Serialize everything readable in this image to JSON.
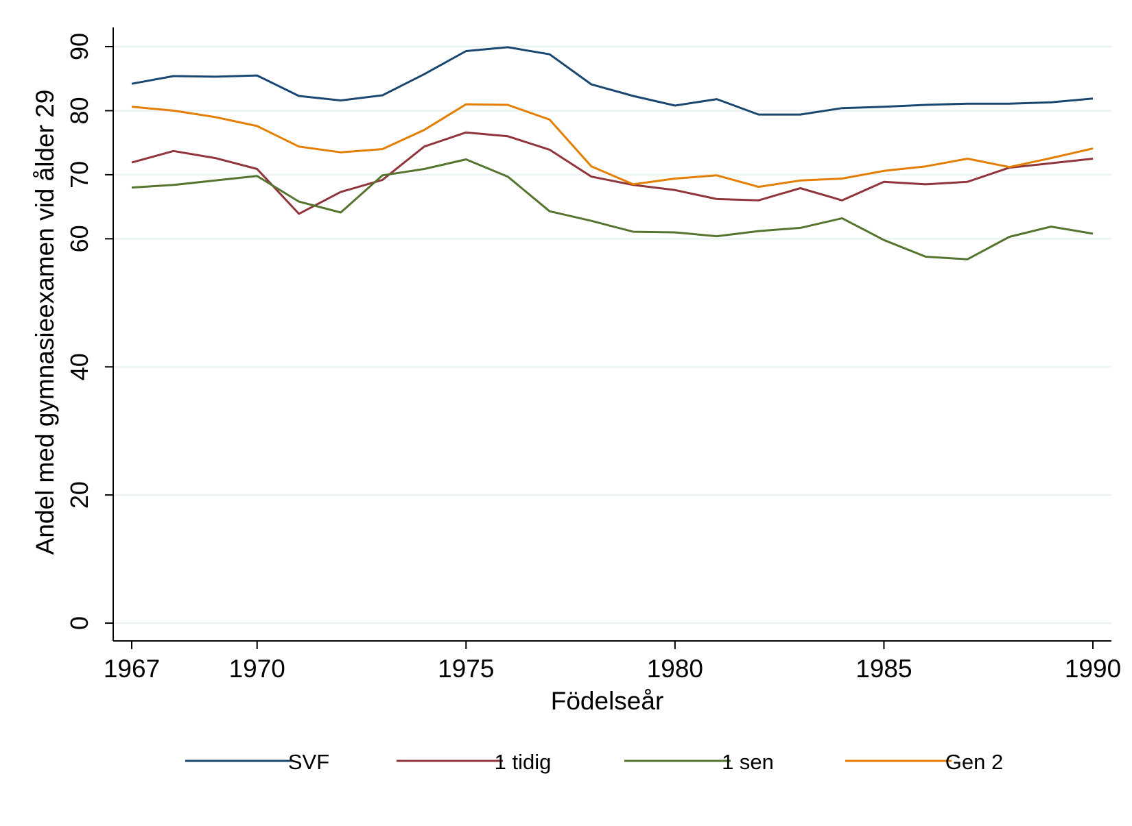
{
  "chart_data": {
    "type": "line",
    "xlabel": "Födelseår",
    "ylabel": "Andel med gymnasieexamen vid ålder 29",
    "xlim": [
      1967,
      1990
    ],
    "ylim": [
      0,
      90
    ],
    "xticks": [
      1967,
      1970,
      1975,
      1980,
      1985,
      1990
    ],
    "yticks": [
      0,
      20,
      40,
      60,
      70,
      80,
      90
    ],
    "grid": true,
    "legend_position": "bottom",
    "x": [
      1967,
      1968,
      1969,
      1970,
      1971,
      1972,
      1973,
      1974,
      1975,
      1976,
      1977,
      1978,
      1979,
      1980,
      1981,
      1982,
      1983,
      1984,
      1985,
      1986,
      1987,
      1988,
      1989,
      1990
    ],
    "series": [
      {
        "name": "SVF",
        "color": "#1a476f",
        "values": [
          84.2,
          85.4,
          85.3,
          85.5,
          82.3,
          81.6,
          82.4,
          85.7,
          89.3,
          89.9,
          88.8,
          84.1,
          82.3,
          80.8,
          81.8,
          79.4,
          79.4,
          80.4,
          80.6,
          80.9,
          81.1,
          81.1,
          81.3,
          81.9
        ]
      },
      {
        "name": "1 tidig",
        "color": "#90353b",
        "values": [
          71.9,
          73.7,
          72.6,
          70.9,
          63.9,
          67.3,
          69.2,
          74.4,
          76.6,
          76.0,
          73.9,
          69.7,
          68.4,
          67.6,
          66.2,
          66.0,
          67.9,
          66.0,
          68.9,
          68.5,
          68.9,
          71.1,
          71.8,
          72.5
        ]
      },
      {
        "name": "1 sen",
        "color": "#55752f",
        "values": [
          68.0,
          68.4,
          69.1,
          69.8,
          65.8,
          64.1,
          69.9,
          70.9,
          72.4,
          69.7,
          64.3,
          62.8,
          61.1,
          61.0,
          60.4,
          61.2,
          61.7,
          63.2,
          59.8,
          57.2,
          56.8,
          60.3,
          61.9,
          60.8
        ]
      },
      {
        "name": "Gen 2",
        "color": "#e37e00",
        "values": [
          80.6,
          80.0,
          79.0,
          77.6,
          74.4,
          73.5,
          74.0,
          77.0,
          81.0,
          80.9,
          78.6,
          71.3,
          68.5,
          69.4,
          69.9,
          68.1,
          69.1,
          69.4,
          70.6,
          71.3,
          72.5,
          71.2,
          72.6,
          74.1
        ]
      }
    ]
  }
}
